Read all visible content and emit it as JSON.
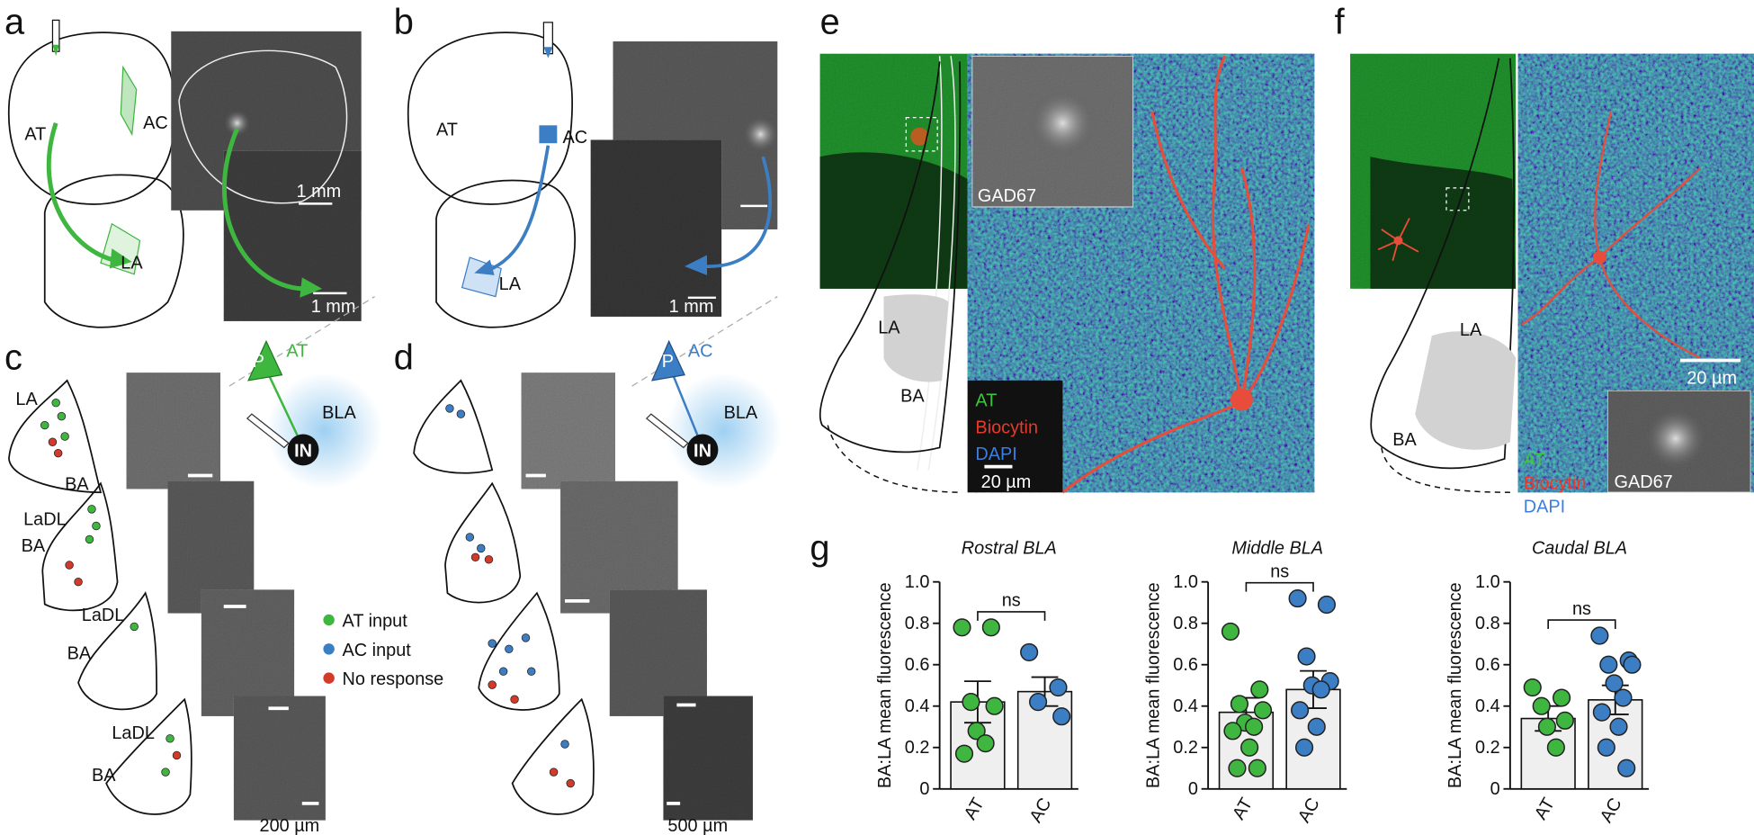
{
  "panel_letters": [
    "a",
    "b",
    "c",
    "d",
    "e",
    "f",
    "g"
  ],
  "a": {
    "labels": [
      "AT",
      "AC",
      "LA"
    ],
    "scale_bars": [
      "1 mm",
      "1 mm"
    ]
  },
  "b": {
    "labels": [
      "AT",
      "AC",
      "LA"
    ],
    "scale_bars": [
      "1 mm"
    ]
  },
  "c": {
    "regions": [
      "LA",
      "BA",
      "LaDL",
      "BA",
      "LaDL",
      "BA",
      "LaDL",
      "BA"
    ],
    "schematic": [
      "P",
      "AT",
      "BLA",
      "IN"
    ],
    "legend": [
      "AT input",
      "AC input",
      "No response"
    ],
    "scale_bar": "200 µm"
  },
  "d": {
    "schematic": [
      "P",
      "AC",
      "BLA",
      "IN"
    ],
    "scale_bar": "500 µm"
  },
  "e": {
    "inset": "GAD67",
    "regions": [
      "LA",
      "BA"
    ],
    "channels": [
      "AT",
      "Biocytin",
      "DAPI"
    ],
    "scale_bar": "20 µm"
  },
  "f": {
    "inset": "GAD67",
    "regions": [
      "LA",
      "BA"
    ],
    "channels": [
      "AT",
      "Biocytin",
      "DAPI"
    ],
    "scale_bar": "20 µm"
  },
  "chart_data": [
    {
      "type": "bar",
      "title": "Rostral BLA",
      "ylabel": "BA:LA mean fluorescence",
      "categories": [
        "AT",
        "AC"
      ],
      "values": [
        0.42,
        0.47
      ],
      "errors": [
        0.1,
        0.07
      ],
      "colors": [
        "#3fb63f",
        "#3c7ec4"
      ],
      "bar_color": "#efefef",
      "points": [
        [
          0.78,
          0.78,
          0.42,
          0.4,
          0.28,
          0.22,
          0.17
        ],
        [
          0.66,
          0.49,
          0.42,
          0.35
        ]
      ],
      "annotation": "ns",
      "ylim": [
        0,
        1
      ],
      "yticks": [
        0,
        0.2,
        0.4,
        0.6,
        0.8,
        {
          "value": 1,
          "label": "1.0"
        }
      ]
    },
    {
      "type": "bar",
      "title": "Middle BLA",
      "ylabel": "BA:LA mean fluorescence",
      "categories": [
        "AT",
        "AC"
      ],
      "values": [
        0.37,
        0.48
      ],
      "errors": [
        0.07,
        0.09
      ],
      "colors": [
        "#3fb63f",
        "#3c7ec4"
      ],
      "bar_color": "#efefef",
      "points": [
        [
          0.76,
          0.48,
          0.41,
          0.38,
          0.32,
          0.3,
          0.28,
          0.2,
          0.1,
          0.1
        ],
        [
          0.92,
          0.89,
          0.64,
          0.52,
          0.5,
          0.48,
          0.38,
          0.3,
          0.2
        ]
      ],
      "annotation": "ns",
      "ylim": [
        0,
        1
      ],
      "yticks": [
        0,
        0.2,
        0.4,
        0.6,
        0.8,
        {
          "value": 1,
          "label": "1.0"
        }
      ]
    },
    {
      "type": "bar",
      "title": "Caudal BLA",
      "ylabel": "BA:LA mean fluorescence",
      "categories": [
        "AT",
        "AC"
      ],
      "values": [
        0.34,
        0.43
      ],
      "errors": [
        0.06,
        0.07
      ],
      "colors": [
        "#3fb63f",
        "#3c7ec4"
      ],
      "bar_color": "#efefef",
      "points": [
        [
          0.49,
          0.44,
          0.4,
          0.33,
          0.3,
          0.2
        ],
        [
          0.74,
          0.62,
          0.6,
          0.6,
          0.51,
          0.44,
          0.37,
          0.3,
          0.2,
          0.1
        ]
      ],
      "annotation": "ns",
      "ylim": [
        0,
        1
      ],
      "yticks": [
        0,
        0.2,
        0.4,
        0.6,
        0.8,
        {
          "value": 1,
          "label": "1.0"
        }
      ]
    }
  ]
}
